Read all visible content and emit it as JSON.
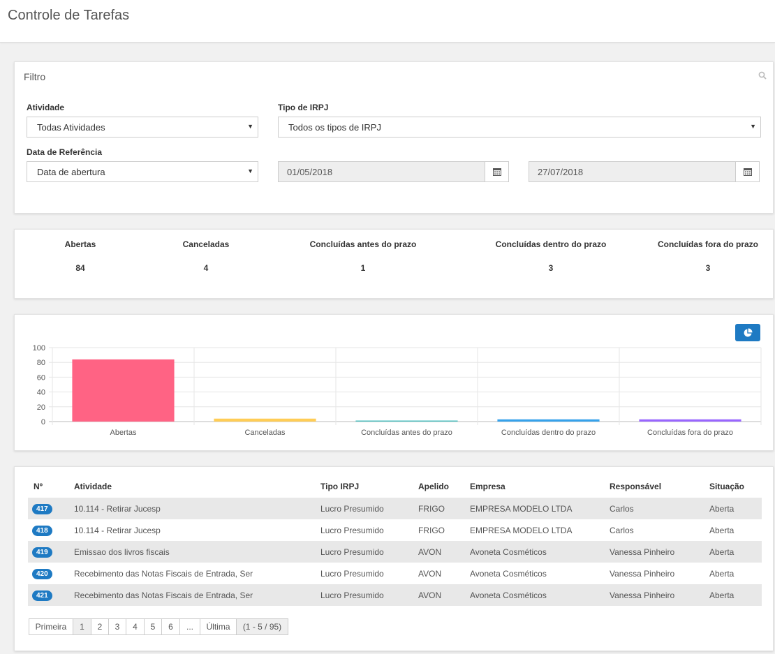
{
  "page": {
    "title": "Controle de Tarefas"
  },
  "filter": {
    "title": "Filtro",
    "atividade_label": "Atividade",
    "atividade_value": "Todas Atividades",
    "tipo_label": "Tipo de IRPJ",
    "tipo_value": "Todos os tipos de IRPJ",
    "data_label": "Data de Referência",
    "data_value": "Data de abertura",
    "date_from": "01/05/2018",
    "date_to": "27/07/2018"
  },
  "counts": [
    {
      "label": "Abertas",
      "value": "84"
    },
    {
      "label": "Canceladas",
      "value": "4"
    },
    {
      "label": "Concluídas antes do prazo",
      "value": "1"
    },
    {
      "label": "Concluídas dentro do prazo",
      "value": "3"
    },
    {
      "label": "Concluídas fora do prazo",
      "value": "3"
    }
  ],
  "chart_data": {
    "type": "bar",
    "categories": [
      "Abertas",
      "Canceladas",
      "Concluídas antes do prazo",
      "Concluídas dentro do prazo",
      "Concluídas fora do prazo"
    ],
    "values": [
      84,
      4,
      1,
      3,
      3
    ],
    "colors": [
      "#ff6384",
      "#ffcd56",
      "#4bc0c0",
      "#36a2eb",
      "#9966ff"
    ],
    "yticks": [
      0,
      20,
      40,
      60,
      80,
      100
    ],
    "ylim": [
      0,
      100
    ],
    "grid": true,
    "title": "",
    "xlabel": "",
    "ylabel": ""
  },
  "table": {
    "headers": [
      "Nº",
      "Atividade",
      "Tipo IRPJ",
      "Apelido",
      "Empresa",
      "Responsável",
      "Situação"
    ],
    "rows": [
      {
        "num": "417",
        "atividade": "10.114 - Retirar Jucesp",
        "tipo": "Lucro Presumido",
        "apelido": "FRIGO",
        "empresa": "EMPRESA MODELO LTDA",
        "responsavel": "Carlos",
        "situacao": "Aberta"
      },
      {
        "num": "418",
        "atividade": "10.114 - Retirar Jucesp",
        "tipo": "Lucro Presumido",
        "apelido": "FRIGO",
        "empresa": "EMPRESA MODELO LTDA",
        "responsavel": "Carlos",
        "situacao": "Aberta"
      },
      {
        "num": "419",
        "atividade": "Emissao dos livros fiscais",
        "tipo": "Lucro Presumido",
        "apelido": "AVON",
        "empresa": "Avoneta Cosméticos",
        "responsavel": "Vanessa Pinheiro",
        "situacao": "Aberta"
      },
      {
        "num": "420",
        "atividade": "Recebimento das Notas Fiscais de Entrada, Ser",
        "tipo": "Lucro Presumido",
        "apelido": "AVON",
        "empresa": "Avoneta Cosméticos",
        "responsavel": "Vanessa Pinheiro",
        "situacao": "Aberta"
      },
      {
        "num": "421",
        "atividade": "Recebimento das Notas Fiscais de Entrada, Ser",
        "tipo": "Lucro Presumido",
        "apelido": "AVON",
        "empresa": "Avoneta Cosméticos",
        "responsavel": "Vanessa Pinheiro",
        "situacao": "Aberta"
      }
    ]
  },
  "pager": {
    "first": "Primeira",
    "pages": [
      "1",
      "2",
      "3",
      "4",
      "5",
      "6",
      "..."
    ],
    "last": "Última",
    "info": "(1 - 5 / 95)"
  },
  "icons": {
    "search": "search-icon",
    "calendar": "calendar-icon",
    "chart_toggle": "pie-chart-icon"
  },
  "colors": {
    "accent": "#1e7ac3"
  }
}
